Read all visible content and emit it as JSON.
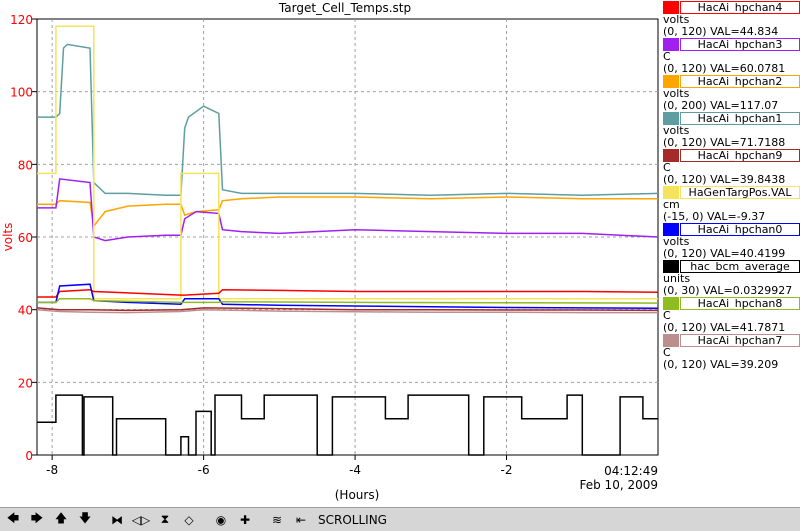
{
  "chart_data": {
    "type": "line",
    "title": "Target_Cell_Temps.stp",
    "xlabel": "(Hours)",
    "ylabel": "volts",
    "xlim": [
      -8.2,
      0
    ],
    "ylim": [
      0,
      120
    ],
    "x_ticks": [
      -8,
      -6,
      -4,
      -2
    ],
    "x_tick_labels": [
      "-8",
      "-6",
      "-4",
      "-2"
    ],
    "y_ticks": [
      0,
      20,
      40,
      60,
      80,
      100,
      120
    ],
    "y_tick_labels": [
      "0",
      "20",
      "40",
      "60",
      "80",
      "100",
      "120"
    ],
    "time_label": "04:12:49",
    "date_label": "Feb 10, 2009",
    "grid": true,
    "series": [
      {
        "name": "HacAi_hpchan1",
        "color": "#5f9ea0",
        "x": [
          -8.2,
          -7.95,
          -7.9,
          -7.85,
          -7.8,
          -7.5,
          -7.45,
          -7.3,
          -7.0,
          -6.5,
          -6.3,
          -6.25,
          -6.2,
          -6.0,
          -5.9,
          -5.8,
          -5.75,
          -5.5,
          -5,
          -4,
          -3,
          -2,
          -1,
          0
        ],
        "y": [
          93,
          93,
          94,
          112,
          113,
          112,
          75,
          72,
          72,
          71.5,
          71.5,
          90,
          93,
          96,
          95,
          94,
          73,
          72,
          72,
          72,
          71.5,
          72,
          71.5,
          72
        ]
      },
      {
        "name": "HacAi_hpchan2",
        "color": "#ffa500",
        "x": [
          -8.2,
          -7.95,
          -7.9,
          -7.5,
          -7.45,
          -7.3,
          -7,
          -6.5,
          -6.3,
          -6.25,
          -6.1,
          -5.8,
          -5.75,
          -5.5,
          -5,
          -4,
          -3,
          -2,
          -1,
          0
        ],
        "y": [
          69,
          69,
          70,
          69.5,
          63,
          67,
          68.5,
          69,
          69,
          66,
          67,
          67.5,
          70,
          70.5,
          71,
          71,
          70.5,
          71,
          70.5,
          70.5
        ]
      },
      {
        "name": "HacAi_hpchan3",
        "color": "#a020f0",
        "x": [
          -8.2,
          -7.95,
          -7.9,
          -7.5,
          -7.45,
          -7.3,
          -7,
          -6.5,
          -6.3,
          -6.25,
          -6.1,
          -5.8,
          -5.75,
          -5.5,
          -5,
          -4,
          -3,
          -2,
          -1,
          0
        ],
        "y": [
          68,
          68,
          76,
          75,
          60,
          59,
          60,
          60.5,
          60.5,
          65,
          67,
          66.5,
          62,
          61.5,
          61,
          62,
          61.5,
          61,
          61,
          60
        ]
      },
      {
        "name": "HaGenTargPos.VAL",
        "color": "#f5e35a",
        "x": [
          -8.2,
          -7.95,
          -7.95,
          -7.45,
          -7.45,
          -6.3,
          -6.3,
          -5.8,
          -5.8,
          0
        ],
        "y": [
          77.5,
          77.5,
          118,
          118,
          43,
          43,
          77.5,
          77.5,
          43,
          43
        ]
      },
      {
        "name": "HacAi_hpchan4",
        "color": "#ff0000",
        "x": [
          -8.2,
          -7.95,
          -7.9,
          -7.5,
          -7.45,
          -6.3,
          -6.25,
          -5.8,
          -5.75,
          -5,
          -4,
          -3,
          -2,
          -1,
          0
        ],
        "y": [
          43.5,
          43.5,
          45,
          45.5,
          45,
          44,
          44,
          44.5,
          45.5,
          45.3,
          45,
          45,
          45,
          45,
          44.8
        ]
      },
      {
        "name": "HacAi_hpchan0",
        "color": "#0000ff",
        "x": [
          -8.2,
          -7.95,
          -7.9,
          -7.5,
          -7.45,
          -7,
          -6.3,
          -6.25,
          -5.8,
          -5.75,
          -5,
          -4,
          -3,
          -2,
          -1,
          0
        ],
        "y": [
          42,
          42,
          46.5,
          47,
          42.5,
          42,
          41.5,
          43,
          43,
          41.5,
          41.2,
          41,
          40.8,
          40.6,
          40.5,
          40.4
        ]
      },
      {
        "name": "HacAi_hpchan8",
        "color": "#8fbc1f",
        "x": [
          -8.2,
          -7.95,
          -7.9,
          -7.5,
          -7.45,
          -6.3,
          -6.25,
          -5.8,
          -5.75,
          -4,
          -2,
          0
        ],
        "y": [
          42,
          42,
          43,
          43,
          42.5,
          42,
          42,
          42,
          42.2,
          42,
          41.9,
          41.8
        ]
      },
      {
        "name": "HacAi_hpchan9",
        "color": "#a52a2a",
        "x": [
          -8.2,
          -7.9,
          -7.5,
          -7,
          -6.3,
          -6,
          -5,
          -4,
          -3,
          -2,
          -1,
          0
        ],
        "y": [
          40.5,
          40,
          40,
          39.8,
          40,
          40.5,
          40.3,
          40,
          40,
          39.9,
          39.9,
          39.8
        ]
      },
      {
        "name": "HacAi_hpchan7",
        "color": "#bc8f8f",
        "x": [
          -8.2,
          -7.9,
          -7.5,
          -7,
          -6.3,
          -6,
          -5,
          -4,
          -3,
          -2,
          -1,
          0
        ],
        "y": [
          40,
          39.5,
          39.3,
          39.2,
          39.5,
          40,
          39.6,
          39.4,
          39.3,
          39.3,
          39.2,
          39.2
        ]
      },
      {
        "name": "hac_bcm_average",
        "color": "#000000",
        "x": [
          -8.2,
          -7.95,
          -7.95,
          -7.6,
          -7.6,
          -7.58,
          -7.58,
          -7.2,
          -7.2,
          -7.15,
          -7.15,
          -6.5,
          -6.5,
          -6.3,
          -6.3,
          -6.2,
          -6.2,
          -6.1,
          -6.1,
          -5.9,
          -5.9,
          -5.85,
          -5.85,
          -5.5,
          -5.5,
          -5.2,
          -5.2,
          -4.5,
          -4.5,
          -4.3,
          -4.3,
          -3.6,
          -3.6,
          -3.3,
          -3.3,
          -2.5,
          -2.5,
          -2.3,
          -2.3,
          -1.8,
          -1.8,
          -1.2,
          -1.2,
          -1.0,
          -1.0,
          -0.5,
          -0.5,
          -0.2,
          -0.2,
          0
        ],
        "y": [
          9,
          9,
          16.5,
          16.5,
          0,
          0,
          16,
          16,
          0,
          0,
          10,
          10,
          0,
          0,
          5,
          5,
          0,
          0,
          12,
          12,
          0,
          0,
          16.5,
          16.5,
          10,
          10,
          16.5,
          16.5,
          0,
          0,
          16,
          16,
          10,
          10,
          16.5,
          16.5,
          0,
          0,
          16,
          16,
          10,
          10,
          16.5,
          16.5,
          0,
          0,
          16,
          16,
          10,
          10
        ]
      }
    ]
  },
  "legend": [
    {
      "name": "HacAi_hpchan4",
      "color": "#ff0000",
      "unit": "volts",
      "range": "(0, 120)",
      "val": "VAL=44.834"
    },
    {
      "name": "HacAi_hpchan3",
      "color": "#a020f0",
      "unit": "C",
      "range": "(0, 120)",
      "val": "VAL=60.0781"
    },
    {
      "name": "HacAi_hpchan2",
      "color": "#ffa500",
      "unit": "volts",
      "range": "(0, 200)",
      "val": "VAL=117.07"
    },
    {
      "name": "HacAi_hpchan1",
      "color": "#5f9ea0",
      "unit": "volts",
      "range": "(0, 120)",
      "val": "VAL=71.7188"
    },
    {
      "name": "HacAi_hpchan9",
      "color": "#a52a2a",
      "unit": "C",
      "range": "(0, 120)",
      "val": "VAL=39.8438"
    },
    {
      "name": "HaGenTargPos.VAL",
      "color": "#f5e35a",
      "unit": "cm",
      "range": "(-15, 0)",
      "val": "VAL=-9.37"
    },
    {
      "name": "HacAi_hpchan0",
      "color": "#0000ff",
      "unit": "volts",
      "range": "(0, 120)",
      "val": "VAL=40.4199"
    },
    {
      "name": "hac_bcm_average",
      "color": "#000000",
      "unit": "units",
      "range": "(0, 30)",
      "val": "VAL=0.0329927"
    },
    {
      "name": "HacAi_hpchan8",
      "color": "#8fbc1f",
      "unit": "C",
      "range": "(0, 120)",
      "val": "VAL=41.7871"
    },
    {
      "name": "HacAi_hpchan7",
      "color": "#bc8f8f",
      "unit": "C",
      "range": "(0, 120)",
      "val": "VAL=39.209"
    }
  ],
  "toolbar": {
    "mode_label": "SCROLLING",
    "buttons": [
      {
        "name": "scroll-left-button",
        "icon": "arrow-left-icon",
        "glyph": "🡄"
      },
      {
        "name": "scroll-right-button",
        "icon": "arrow-right-icon",
        "glyph": "🡆"
      },
      {
        "name": "scroll-up-button",
        "icon": "arrow-up-icon",
        "glyph": "🡅"
      },
      {
        "name": "scroll-down-button",
        "icon": "arrow-down-icon",
        "glyph": "🡇"
      },
      {
        "name": "zoom-x-in-button",
        "icon": "expand-horizontal-icon",
        "glyph": "⧓"
      },
      {
        "name": "zoom-x-out-button",
        "icon": "compress-horizontal-icon",
        "glyph": "◁▷"
      },
      {
        "name": "zoom-y-in-button",
        "icon": "expand-vertical-icon",
        "glyph": "⧗"
      },
      {
        "name": "zoom-y-out-button",
        "icon": "compress-vertical-icon",
        "glyph": "◇"
      },
      {
        "name": "reset-button",
        "icon": "target-icon",
        "glyph": "◉"
      },
      {
        "name": "crosshair-button",
        "icon": "plus-icon",
        "glyph": "✚"
      },
      {
        "name": "autoscale-button",
        "icon": "autoscale-icon",
        "glyph": "≋"
      },
      {
        "name": "jump-to-end-button",
        "icon": "jump-end-icon",
        "glyph": "⇤"
      }
    ]
  }
}
